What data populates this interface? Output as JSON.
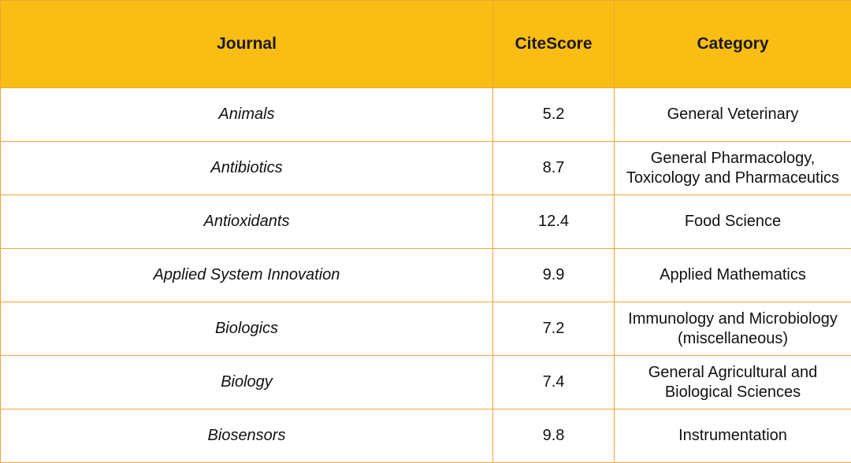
{
  "table": {
    "headers": {
      "journal": "Journal",
      "citescore": "CiteScore",
      "category": "Category"
    },
    "rows": [
      {
        "journal": "Animals",
        "citescore": "5.2",
        "category": [
          "General Veterinary"
        ]
      },
      {
        "journal": "Antibiotics",
        "citescore": "8.7",
        "category": [
          "General Pharmacology,",
          "Toxicology and Pharmaceutics"
        ]
      },
      {
        "journal": "Antioxidants",
        "citescore": "12.4",
        "category": [
          "Food Science"
        ]
      },
      {
        "journal": "Applied System Innovation",
        "citescore": "9.9",
        "category": [
          "Applied Mathematics"
        ]
      },
      {
        "journal": "Biologics",
        "citescore": "7.2",
        "category": [
          "Immunology and Microbiology",
          "(miscellaneous)"
        ]
      },
      {
        "journal": "Biology",
        "citescore": "7.4",
        "category": [
          "General Agricultural and",
          "Biological Sciences"
        ]
      },
      {
        "journal": "Biosensors",
        "citescore": "9.8",
        "category": [
          "Instrumentation"
        ]
      }
    ]
  },
  "colors": {
    "header_bg": "#f9bd14",
    "border": "#f2a33a"
  }
}
